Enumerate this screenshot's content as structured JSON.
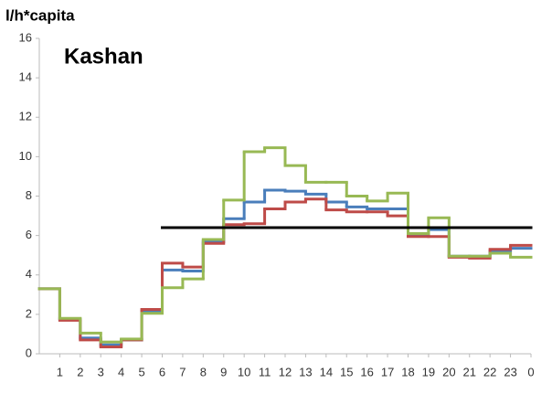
{
  "chart_data": {
    "type": "step",
    "title": "Kashan",
    "y_label": "l/h*capita",
    "x": [
      0,
      1,
      2,
      3,
      4,
      5,
      6,
      7,
      8,
      9,
      10,
      11,
      12,
      13,
      14,
      15,
      16,
      17,
      18,
      19,
      20,
      21,
      22,
      23
    ],
    "xlim": [
      0,
      24
    ],
    "xticks": [
      1,
      2,
      3,
      4,
      5,
      6,
      7,
      8,
      9,
      10,
      11,
      12,
      13,
      14,
      15,
      16,
      17,
      18,
      19,
      20,
      21,
      22,
      23,
      {
        "value": 24,
        "label": "0"
      }
    ],
    "ylim": [
      0,
      16
    ],
    "yticks": [
      0,
      2,
      4,
      6,
      8,
      10,
      12,
      14,
      16
    ],
    "grid": false,
    "series": [
      {
        "color": "#4a7ebb",
        "values": [
          3.3,
          1.75,
          0.8,
          0.45,
          0.7,
          2.15,
          4.25,
          4.2,
          5.7,
          6.85,
          7.7,
          8.3,
          8.25,
          8.1,
          7.7,
          7.45,
          7.35,
          7.35,
          6.0,
          6.3,
          4.95,
          4.95,
          5.2,
          5.35
        ]
      },
      {
        "color": "#be4b48",
        "values": [
          3.3,
          1.7,
          0.7,
          0.35,
          0.7,
          2.25,
          4.6,
          4.4,
          5.6,
          6.55,
          6.6,
          7.35,
          7.7,
          7.85,
          7.3,
          7.2,
          7.2,
          7.0,
          5.95,
          5.95,
          4.9,
          4.85,
          5.3,
          5.5
        ]
      },
      {
        "color": "#98b954",
        "values": [
          3.3,
          1.8,
          1.05,
          0.6,
          0.75,
          2.05,
          3.35,
          3.8,
          5.8,
          7.8,
          10.25,
          10.45,
          9.55,
          8.7,
          8.7,
          8.0,
          7.75,
          8.15,
          6.1,
          6.9,
          4.95,
          4.95,
          5.1,
          4.9
        ]
      },
      {
        "color": "#000000",
        "values": [
          null,
          null,
          null,
          null,
          null,
          null,
          6.4,
          6.4,
          6.4,
          6.4,
          6.4,
          6.4,
          6.4,
          6.4,
          6.4,
          6.4,
          6.4,
          6.4,
          6.4,
          6.4,
          6.4,
          6.4,
          6.4,
          6.4
        ]
      }
    ]
  }
}
